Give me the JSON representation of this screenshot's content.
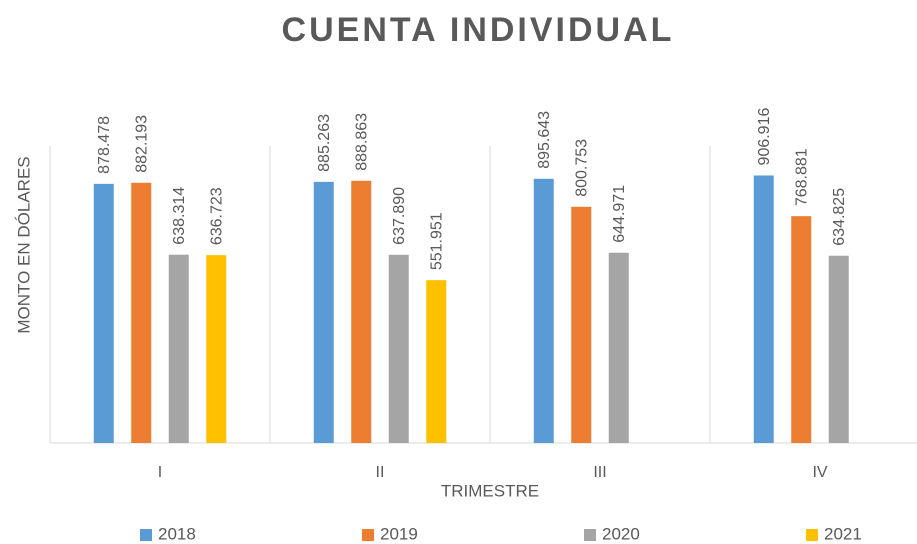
{
  "chart_data": {
    "type": "bar",
    "title": "CUENTA INDIVIDUAL",
    "x_label": "TRIMESTRE",
    "y_label": "MONTO EN DÓLARES",
    "categories": [
      "I",
      "II",
      "III",
      "IV"
    ],
    "ylim": [
      0,
      1000000
    ],
    "legend": "bottom",
    "series": [
      {
        "name": "2018",
        "color": "#5b9bd5",
        "values": [
          878478,
          885263,
          895643,
          906916
        ],
        "value_labels": [
          "878.478",
          "885.263",
          "895.643",
          "906.916"
        ]
      },
      {
        "name": "2019",
        "color": "#ed7d31",
        "values": [
          882193,
          888863,
          800753,
          768881
        ],
        "value_labels": [
          "882.193",
          "888.863",
          "800.753",
          "768.881"
        ]
      },
      {
        "name": "2020",
        "color": "#a5a5a5",
        "values": [
          638314,
          637890,
          644971,
          634825
        ],
        "value_labels": [
          "638.314",
          "637.890",
          "644.971",
          "634.825"
        ]
      },
      {
        "name": "2021",
        "color": "#ffc000",
        "values": [
          636723,
          551951,
          null,
          null
        ],
        "value_labels": [
          "636.723",
          "551.951",
          null,
          null
        ]
      }
    ]
  }
}
